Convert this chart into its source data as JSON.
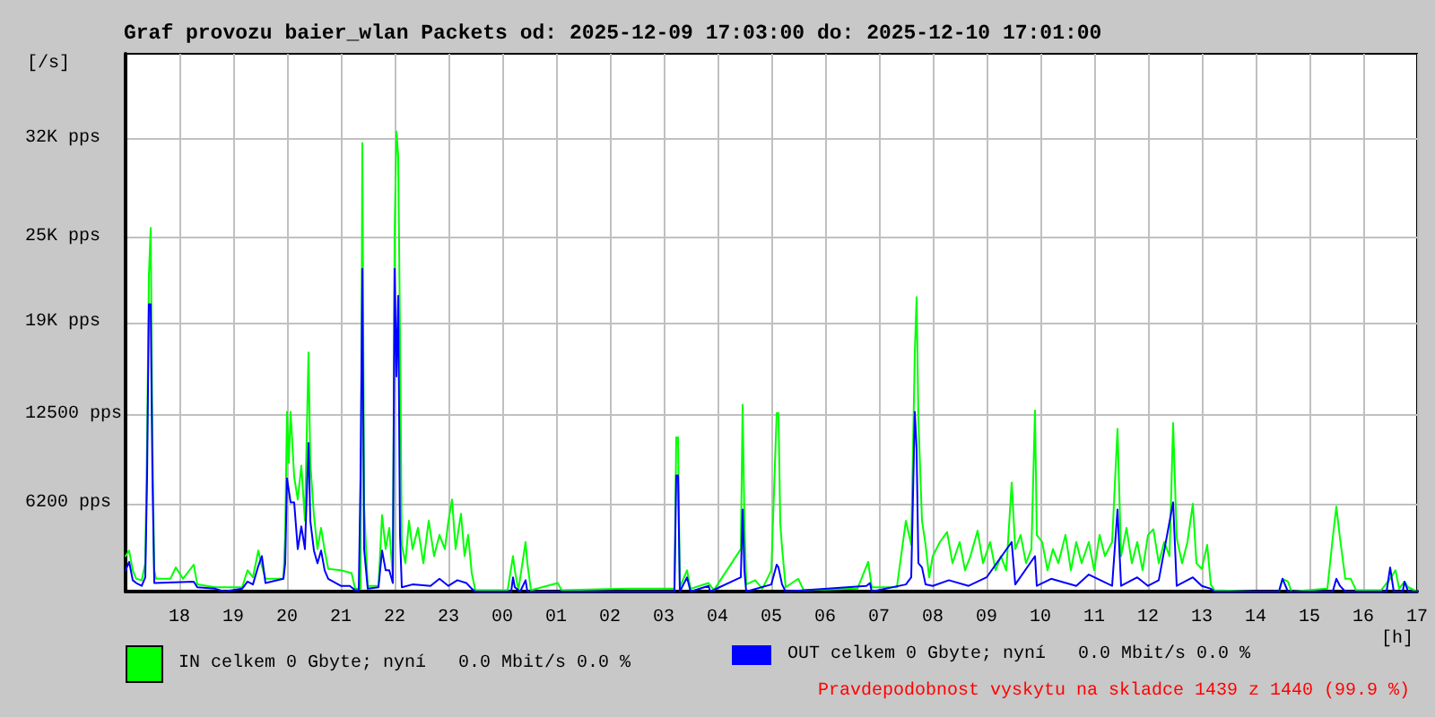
{
  "chart_data": {
    "type": "line",
    "title": "Graf provozu baier_wlan Packets od: 2025-12-09 17:03:00 do: 2025-12-10 17:01:00",
    "xlabel": "[h]",
    "ylabel": "[/s]",
    "annotations": [
      "Pravdepodobnost vyskytu na skladce 1439 z 1440 (99.9 %)"
    ],
    "xlim": [
      "2025-12-09T17:00",
      "2025-12-10T17:00"
    ],
    "xticks": [
      {
        "value": "2025-12-09T18:00",
        "label": "18"
      },
      {
        "value": "2025-12-09T19:00",
        "label": "19"
      },
      {
        "value": "2025-12-09T20:00",
        "label": "20"
      },
      {
        "value": "2025-12-09T21:00",
        "label": "21"
      },
      {
        "value": "2025-12-09T22:00",
        "label": "22"
      },
      {
        "value": "2025-12-09T23:00",
        "label": "23"
      },
      {
        "value": "2025-12-10T00:00",
        "label": "00"
      },
      {
        "value": "2025-12-10T01:00",
        "label": "01"
      },
      {
        "value": "2025-12-10T02:00",
        "label": "02"
      },
      {
        "value": "2025-12-10T03:00",
        "label": "03"
      },
      {
        "value": "2025-12-10T04:00",
        "label": "04"
      },
      {
        "value": "2025-12-10T05:00",
        "label": "05"
      },
      {
        "value": "2025-12-10T06:00",
        "label": "06"
      },
      {
        "value": "2025-12-10T07:00",
        "label": "07"
      },
      {
        "value": "2025-12-10T08:00",
        "label": "08"
      },
      {
        "value": "2025-12-10T09:00",
        "label": "09"
      },
      {
        "value": "2025-12-10T10:00",
        "label": "10"
      },
      {
        "value": "2025-12-10T11:00",
        "label": "11"
      },
      {
        "value": "2025-12-10T12:00",
        "label": "12"
      },
      {
        "value": "2025-12-10T13:00",
        "label": "13"
      },
      {
        "value": "2025-12-10T14:00",
        "label": "14"
      },
      {
        "value": "2025-12-10T15:00",
        "label": "15"
      },
      {
        "value": "2025-12-10T16:00",
        "label": "16"
      },
      {
        "value": "2025-12-10T17:00",
        "label": "17"
      }
    ],
    "ylim": [
      0,
      38000
    ],
    "yticks": [
      {
        "value": 6200,
        "label": "6200 pps"
      },
      {
        "value": 12500,
        "label": "12500 pps"
      },
      {
        "value": 19000,
        "label": "19K pps"
      },
      {
        "value": 25000,
        "label": "25K pps"
      },
      {
        "value": 32000,
        "label": "32K pps"
      }
    ],
    "grid": true,
    "legend": "bottom",
    "series": [
      {
        "name": "IN celkem 0 Gbyte; nyní   0.0 Mbit/s 0.0 %",
        "color": "#00ff00",
        "x": [
          "2025-12-09T17:00",
          "2025-12-09T17:04",
          "2025-12-09T17:08",
          "2025-12-09T17:12",
          "2025-12-09T17:18",
          "2025-12-09T17:22",
          "2025-12-09T17:24",
          "2025-12-09T17:26",
          "2025-12-09T17:28",
          "2025-12-09T17:30",
          "2025-12-09T17:32",
          "2025-12-09T17:34",
          "2025-12-09T17:50",
          "2025-12-09T17:56",
          "2025-12-09T18:04",
          "2025-12-09T18:16",
          "2025-12-09T18:20",
          "2025-12-09T18:40",
          "2025-12-09T19:00",
          "2025-12-09T19:10",
          "2025-12-09T19:16",
          "2025-12-09T19:22",
          "2025-12-09T19:28",
          "2025-12-09T19:32",
          "2025-12-09T19:36",
          "2025-12-09T19:56",
          "2025-12-09T19:58",
          "2025-12-09T20:00",
          "2025-12-09T20:02",
          "2025-12-09T20:04",
          "2025-12-09T20:08",
          "2025-12-09T20:12",
          "2025-12-09T20:16",
          "2025-12-09T20:20",
          "2025-12-09T20:24",
          "2025-12-09T20:26",
          "2025-12-09T20:30",
          "2025-12-09T20:34",
          "2025-12-09T20:38",
          "2025-12-09T20:42",
          "2025-12-09T20:46",
          "2025-12-09T21:00",
          "2025-12-09T21:12",
          "2025-12-09T21:16",
          "2025-12-09T21:22",
          "2025-12-09T21:24",
          "2025-12-09T21:26",
          "2025-12-09T21:30",
          "2025-12-09T21:42",
          "2025-12-09T21:46",
          "2025-12-09T21:50",
          "2025-12-09T21:54",
          "2025-12-09T21:58",
          "2025-12-09T22:00",
          "2025-12-09T22:02",
          "2025-12-09T22:04",
          "2025-12-09T22:06",
          "2025-12-09T22:08",
          "2025-12-09T22:12",
          "2025-12-09T22:16",
          "2025-12-09T22:20",
          "2025-12-09T22:26",
          "2025-12-09T22:32",
          "2025-12-09T22:38",
          "2025-12-09T22:44",
          "2025-12-09T22:50",
          "2025-12-09T22:56",
          "2025-12-09T23:00",
          "2025-12-09T23:04",
          "2025-12-09T23:08",
          "2025-12-09T23:14",
          "2025-12-09T23:18",
          "2025-12-09T23:22",
          "2025-12-09T23:26",
          "2025-12-09T23:30",
          "2025-12-10T00:06",
          "2025-12-10T00:12",
          "2025-12-10T00:14",
          "2025-12-10T00:18",
          "2025-12-10T00:26",
          "2025-12-10T00:28",
          "2025-12-10T00:32",
          "2025-12-10T01:02",
          "2025-12-10T01:06",
          "2025-12-10T02:20",
          "2025-12-10T03:12",
          "2025-12-10T03:14",
          "2025-12-10T03:16",
          "2025-12-10T03:18",
          "2025-12-10T03:26",
          "2025-12-10T03:30",
          "2025-12-10T03:50",
          "2025-12-10T03:56",
          "2025-12-10T04:26",
          "2025-12-10T04:28",
          "2025-12-10T04:30",
          "2025-12-10T04:32",
          "2025-12-10T04:42",
          "2025-12-10T04:50",
          "2025-12-10T05:00",
          "2025-12-10T05:06",
          "2025-12-10T05:08",
          "2025-12-10T05:10",
          "2025-12-10T05:12",
          "2025-12-10T05:16",
          "2025-12-10T05:30",
          "2025-12-10T05:36",
          "2025-12-10T06:36",
          "2025-12-10T06:48",
          "2025-12-10T06:52",
          "2025-12-10T07:20",
          "2025-12-10T07:30",
          "2025-12-10T07:36",
          "2025-12-10T07:40",
          "2025-12-10T07:42",
          "2025-12-10T07:44",
          "2025-12-10T07:48",
          "2025-12-10T07:52",
          "2025-12-10T07:56",
          "2025-12-10T08:00",
          "2025-12-10T08:08",
          "2025-12-10T08:16",
          "2025-12-10T08:22",
          "2025-12-10T08:30",
          "2025-12-10T08:36",
          "2025-12-10T08:42",
          "2025-12-10T08:50",
          "2025-12-10T08:56",
          "2025-12-10T09:04",
          "2025-12-10T09:10",
          "2025-12-10T09:16",
          "2025-12-10T09:22",
          "2025-12-10T09:28",
          "2025-12-10T09:32",
          "2025-12-10T09:38",
          "2025-12-10T09:44",
          "2025-12-10T09:50",
          "2025-12-10T09:54",
          "2025-12-10T09:56",
          "2025-12-10T10:02",
          "2025-12-10T10:08",
          "2025-12-10T10:14",
          "2025-12-10T10:20",
          "2025-12-10T10:28",
          "2025-12-10T10:34",
          "2025-12-10T10:40",
          "2025-12-10T10:46",
          "2025-12-10T10:54",
          "2025-12-10T11:00",
          "2025-12-10T11:06",
          "2025-12-10T11:12",
          "2025-12-10T11:20",
          "2025-12-10T11:26",
          "2025-12-10T11:30",
          "2025-12-10T11:36",
          "2025-12-10T11:42",
          "2025-12-10T11:48",
          "2025-12-10T11:54",
          "2025-12-10T12:00",
          "2025-12-10T12:06",
          "2025-12-10T12:12",
          "2025-12-10T12:18",
          "2025-12-10T12:24",
          "2025-12-10T12:28",
          "2025-12-10T12:32",
          "2025-12-10T12:38",
          "2025-12-10T12:44",
          "2025-12-10T12:50",
          "2025-12-10T12:54",
          "2025-12-10T13:00",
          "2025-12-10T13:06",
          "2025-12-10T13:10",
          "2025-12-10T13:14",
          "2025-12-10T14:00",
          "2025-12-10T14:26",
          "2025-12-10T14:30",
          "2025-12-10T14:36",
          "2025-12-10T14:40",
          "2025-12-10T15:20",
          "2025-12-10T15:26",
          "2025-12-10T15:30",
          "2025-12-10T15:34",
          "2025-12-10T15:40",
          "2025-12-10T15:46",
          "2025-12-10T15:52",
          "2025-12-10T16:20",
          "2025-12-10T16:30",
          "2025-12-10T16:36",
          "2025-12-10T16:40",
          "2025-12-10T16:46",
          "2025-12-10T16:50",
          "2025-12-10T17:00"
        ],
        "values": [
          2500,
          2900,
          1500,
          900,
          800,
          2000,
          10500,
          22300,
          25700,
          10500,
          1500,
          900,
          900,
          1700,
          900,
          1900,
          500,
          300,
          300,
          300,
          1500,
          1000,
          2900,
          1800,
          900,
          900,
          4000,
          12700,
          9100,
          12700,
          8100,
          6500,
          8900,
          5000,
          16900,
          9100,
          5400,
          3000,
          4500,
          2900,
          1600,
          1500,
          1300,
          200,
          200,
          31700,
          6000,
          400,
          400,
          5400,
          3000,
          4500,
          1000,
          25300,
          32500,
          30800,
          18200,
          3300,
          2000,
          5000,
          3000,
          4500,
          2000,
          5000,
          2500,
          4000,
          3000,
          5000,
          6500,
          3000,
          5500,
          2500,
          4000,
          1300,
          100,
          100,
          2500,
          1500,
          100,
          3500,
          2000,
          100,
          600,
          100,
          200,
          200,
          10900,
          10900,
          300,
          1500,
          200,
          600,
          100,
          3000,
          13200,
          5000,
          500,
          800,
          200,
          1500,
          12600,
          12600,
          4800,
          3100,
          300,
          900,
          100,
          200,
          2100,
          300,
          300,
          5000,
          3300,
          16900,
          20800,
          12200,
          5000,
          3300,
          1000,
          2500,
          3500,
          4200,
          2000,
          3500,
          1500,
          2500,
          4300,
          2000,
          3500,
          1500,
          2500,
          1500,
          7700,
          3000,
          4000,
          2000,
          3000,
          12800,
          4000,
          3500,
          1500,
          3000,
          2000,
          4000,
          1500,
          3500,
          2000,
          3500,
          1500,
          4000,
          2500,
          3500,
          11500,
          2500,
          4500,
          2000,
          3500,
          1500,
          4000,
          4400,
          2000,
          3500,
          2500,
          11900,
          3800,
          2000,
          3500,
          6200,
          2000,
          1600,
          3300,
          500,
          100,
          0,
          0,
          900,
          700,
          0,
          200,
          3800,
          6000,
          3800,
          900,
          900,
          100,
          100,
          900,
          1500,
          200,
          700,
          300,
          0
        ]
      },
      {
        "name": "OUT celkem 0 Gbyte; nyní   0.0 Mbit/s 0.0 %",
        "color": "#0000ff",
        "x": [
          "2025-12-09T17:00",
          "2025-12-09T17:04",
          "2025-12-09T17:08",
          "2025-12-09T17:12",
          "2025-12-09T17:18",
          "2025-12-09T17:22",
          "2025-12-09T17:24",
          "2025-12-09T17:26",
          "2025-12-09T17:28",
          "2025-12-09T17:30",
          "2025-12-09T17:32",
          "2025-12-09T18:16",
          "2025-12-09T18:20",
          "2025-12-09T18:40",
          "2025-12-09T18:50",
          "2025-12-09T19:10",
          "2025-12-09T19:16",
          "2025-12-09T19:22",
          "2025-12-09T19:28",
          "2025-12-09T19:32",
          "2025-12-09T19:36",
          "2025-12-09T19:56",
          "2025-12-09T19:58",
          "2025-12-09T20:00",
          "2025-12-09T20:04",
          "2025-12-09T20:08",
          "2025-12-09T20:12",
          "2025-12-09T20:16",
          "2025-12-09T20:20",
          "2025-12-09T20:24",
          "2025-12-09T20:26",
          "2025-12-09T20:30",
          "2025-12-09T20:34",
          "2025-12-09T20:38",
          "2025-12-09T20:42",
          "2025-12-09T20:46",
          "2025-12-09T21:00",
          "2025-12-09T21:10",
          "2025-12-09T21:16",
          "2025-12-09T21:20",
          "2025-12-09T21:22",
          "2025-12-09T21:24",
          "2025-12-09T21:26",
          "2025-12-09T21:30",
          "2025-12-09T21:42",
          "2025-12-09T21:46",
          "2025-12-09T21:50",
          "2025-12-09T21:54",
          "2025-12-09T21:58",
          "2025-12-09T22:00",
          "2025-12-09T22:02",
          "2025-12-09T22:04",
          "2025-12-09T22:06",
          "2025-12-09T22:08",
          "2025-12-09T22:20",
          "2025-12-09T22:40",
          "2025-12-09T22:50",
          "2025-12-09T23:00",
          "2025-12-09T23:10",
          "2025-12-09T23:20",
          "2025-12-09T23:26",
          "2025-12-09T23:30",
          "2025-12-10T00:10",
          "2025-12-10T00:12",
          "2025-12-10T00:14",
          "2025-12-10T00:20",
          "2025-12-10T00:26",
          "2025-12-10T00:28",
          "2025-12-10T03:12",
          "2025-12-10T03:14",
          "2025-12-10T03:16",
          "2025-12-10T03:18",
          "2025-12-10T03:26",
          "2025-12-10T03:30",
          "2025-12-10T03:50",
          "2025-12-10T03:52",
          "2025-12-10T04:26",
          "2025-12-10T04:28",
          "2025-12-10T04:30",
          "2025-12-10T04:32",
          "2025-12-10T05:00",
          "2025-12-10T05:06",
          "2025-12-10T05:08",
          "2025-12-10T05:12",
          "2025-12-10T05:16",
          "2025-12-10T06:46",
          "2025-12-10T06:50",
          "2025-12-10T06:52",
          "2025-12-10T07:30",
          "2025-12-10T07:36",
          "2025-12-10T07:40",
          "2025-12-10T07:42",
          "2025-12-10T07:44",
          "2025-12-10T07:48",
          "2025-12-10T07:52",
          "2025-12-10T08:00",
          "2025-12-10T08:18",
          "2025-12-10T08:40",
          "2025-12-10T09:00",
          "2025-12-10T09:28",
          "2025-12-10T09:32",
          "2025-12-10T09:54",
          "2025-12-10T09:56",
          "2025-12-10T10:12",
          "2025-12-10T10:40",
          "2025-12-10T10:54",
          "2025-12-10T11:20",
          "2025-12-10T11:26",
          "2025-12-10T11:30",
          "2025-12-10T11:48",
          "2025-12-10T12:00",
          "2025-12-10T12:12",
          "2025-12-10T12:28",
          "2025-12-10T12:32",
          "2025-12-10T12:50",
          "2025-12-10T13:00",
          "2025-12-10T13:10",
          "2025-12-10T13:14",
          "2025-12-10T14:26",
          "2025-12-10T14:30",
          "2025-12-10T14:36",
          "2025-12-10T15:26",
          "2025-12-10T15:30",
          "2025-12-10T15:34",
          "2025-12-10T15:40",
          "2025-12-10T16:26",
          "2025-12-10T16:30",
          "2025-12-10T16:34",
          "2025-12-10T16:44",
          "2025-12-10T16:46",
          "2025-12-10T16:50",
          "2025-12-10T17:00"
        ],
        "values": [
          1500,
          2100,
          800,
          600,
          400,
          1000,
          8100,
          20300,
          20300,
          8100,
          600,
          700,
          300,
          200,
          0,
          200,
          700,
          500,
          1800,
          2500,
          600,
          900,
          2000,
          8000,
          6300,
          6300,
          3000,
          4600,
          3000,
          10500,
          5000,
          2900,
          2000,
          2900,
          1500,
          900,
          400,
          400,
          100,
          100,
          8100,
          22800,
          3000,
          200,
          300,
          2900,
          1500,
          1500,
          600,
          22800,
          15200,
          20900,
          4000,
          300,
          500,
          400,
          900,
          400,
          800,
          600,
          200,
          0,
          0,
          1000,
          300,
          0,
          800,
          0,
          0,
          8200,
          8200,
          0,
          1000,
          0,
          400,
          0,
          1000,
          5800,
          1500,
          0,
          500,
          1900,
          1700,
          500,
          0,
          400,
          600,
          0,
          500,
          1000,
          12700,
          10100,
          2000,
          1700,
          500,
          400,
          800,
          400,
          1000,
          3500,
          500,
          2500,
          400,
          900,
          400,
          1200,
          400,
          5800,
          400,
          1000,
          400,
          800,
          6300,
          400,
          1000,
          400,
          200,
          0,
          0,
          900,
          0,
          0,
          900,
          400,
          0,
          0,
          1700,
          0,
          0,
          700,
          0,
          0
        ]
      }
    ]
  }
}
